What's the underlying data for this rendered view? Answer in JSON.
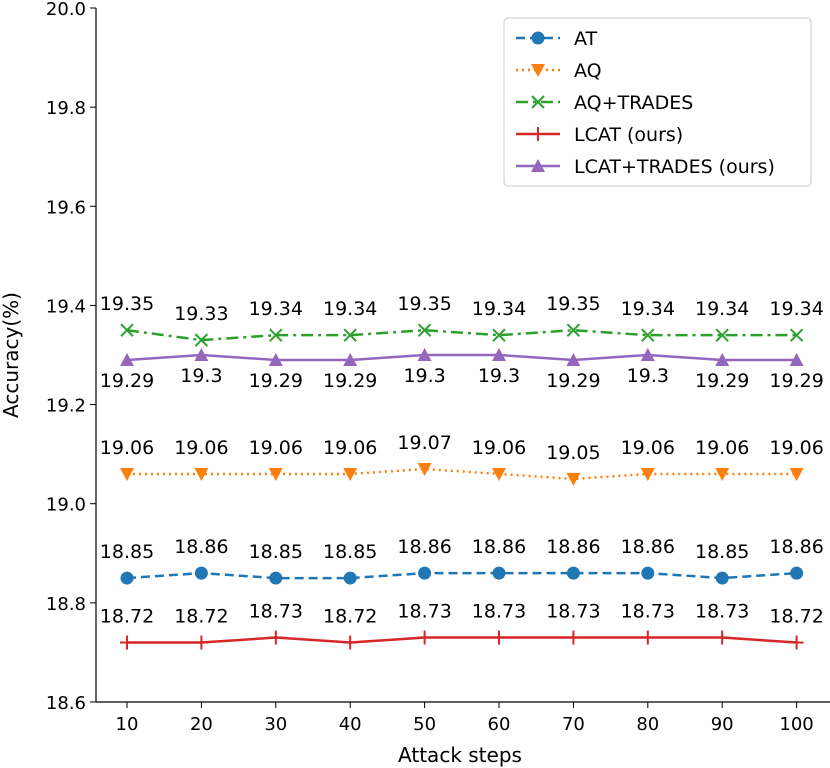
{
  "chart_data": {
    "type": "line",
    "xlabel": "Attack steps",
    "ylabel": "Accuracy(%)",
    "x": [
      10,
      20,
      30,
      40,
      50,
      60,
      70,
      80,
      90,
      100
    ],
    "ylim": [
      18.6,
      20.0
    ],
    "yticks": [
      "18.6",
      "18.8",
      "19.0",
      "19.2",
      "19.4",
      "19.6",
      "19.8",
      "20.0"
    ],
    "xticks": [
      "10",
      "20",
      "30",
      "40",
      "50",
      "60",
      "70",
      "80",
      "90",
      "100"
    ],
    "grid": false,
    "legend_position": "top-right",
    "series": [
      {
        "name": "AT",
        "color": "#1f77b4",
        "linestyle": "dashed",
        "marker": "circle",
        "values": [
          18.85,
          18.86,
          18.85,
          18.85,
          18.86,
          18.86,
          18.86,
          18.86,
          18.85,
          18.86
        ],
        "labels": [
          "18.85",
          "18.86",
          "18.85",
          "18.85",
          "18.86",
          "18.86",
          "18.86",
          "18.86",
          "18.85",
          "18.86"
        ],
        "label_position": "above"
      },
      {
        "name": "AQ",
        "color": "#ff7f0e",
        "linestyle": "dotted",
        "marker": "triangle-down",
        "values": [
          19.06,
          19.06,
          19.06,
          19.06,
          19.07,
          19.06,
          19.05,
          19.06,
          19.06,
          19.06
        ],
        "labels": [
          "19.06",
          "19.06",
          "19.06",
          "19.06",
          "19.07",
          "19.06",
          "19.05",
          "19.06",
          "19.06",
          "19.06"
        ],
        "label_position": "above"
      },
      {
        "name": "AQ+TRADES",
        "color": "#2ca02c",
        "linestyle": "dashdot",
        "marker": "x",
        "values": [
          19.35,
          19.33,
          19.34,
          19.34,
          19.35,
          19.34,
          19.35,
          19.34,
          19.34,
          19.34
        ],
        "labels": [
          "19.35",
          "19.33",
          "19.34",
          "19.34",
          "19.35",
          "19.34",
          "19.35",
          "19.34",
          "19.34",
          "19.34"
        ],
        "label_position": "above"
      },
      {
        "name": "LCAT (ours)",
        "color": "#d62728",
        "linestyle": "solid",
        "marker": "plus",
        "values": [
          18.72,
          18.72,
          18.73,
          18.72,
          18.73,
          18.73,
          18.73,
          18.73,
          18.73,
          18.72
        ],
        "labels": [
          "18.72",
          "18.72",
          "18.73",
          "18.72",
          "18.73",
          "18.73",
          "18.73",
          "18.73",
          "18.73",
          "18.72"
        ],
        "label_position": "above"
      },
      {
        "name": "LCAT+TRADES (ours)",
        "color": "#9467bd",
        "linestyle": "solid",
        "marker": "triangle-up",
        "values": [
          19.29,
          19.3,
          19.29,
          19.29,
          19.3,
          19.3,
          19.29,
          19.3,
          19.29,
          19.29
        ],
        "labels": [
          "19.29",
          "19.3",
          "19.29",
          "19.29",
          "19.3",
          "19.3",
          "19.29",
          "19.3",
          "19.29",
          "19.29"
        ],
        "label_position": "below"
      }
    ]
  }
}
